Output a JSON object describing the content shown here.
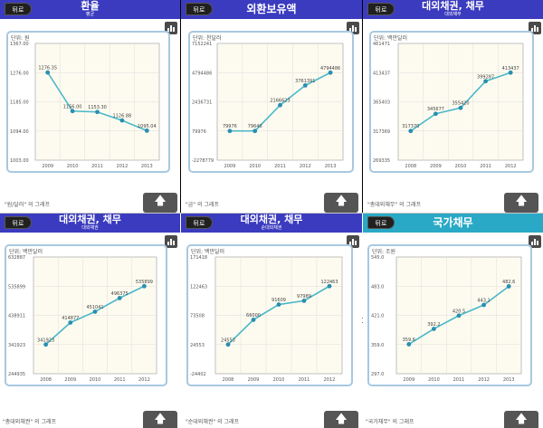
{
  "back_label": "뒤로",
  "up_icon": "up-arrow-icon",
  "chart_icon": "bar-chart-icon",
  "panels": [
    {
      "title": "환율",
      "subtitle": "평균",
      "footer": "\"원/달러\" 의 그래프",
      "chart_data": {
        "type": "line",
        "unit": "단위: 원",
        "x": [
          "2009",
          "2010",
          "2011",
          "2012",
          "2013"
        ],
        "values": [
          1276.35,
          1156.0,
          1153.3,
          1126.88,
          1095.04
        ],
        "labels": [
          "1276.35",
          "1156.00",
          "1153.30",
          "1126.88",
          "1095.04"
        ],
        "ylim": [
          1003.0,
          1367.0
        ],
        "yticks": [
          "1367.00",
          "1276.00",
          "1185.00",
          "1094.00",
          "1003.00"
        ]
      }
    },
    {
      "title": "외환보유액",
      "subtitle": "",
      "footer": "\"금\" 의 그래프",
      "chart_data": {
        "type": "line",
        "unit": "단위: 천달러",
        "x": [
          "2009",
          "2010",
          "2011",
          "2012",
          "2013"
        ],
        "values": [
          79976,
          79646,
          2166623,
          3761391,
          4794486
        ],
        "labels": [
          "79976",
          "79646",
          "2166623",
          "3761391",
          "4794486"
        ],
        "ylim": [
          -2278779,
          7152241
        ],
        "yticks": [
          "7152241",
          "4794486",
          "2436731",
          "79976",
          "-2278779"
        ]
      }
    },
    {
      "title": "대외채권, 채무",
      "subtitle": "대외채무",
      "footer": "\"총대외채무\" 의 그래프",
      "chart_data": {
        "type": "line",
        "unit": "단위: 백만달러",
        "x": [
          "2008",
          "2009",
          "2010",
          "2011",
          "2012"
        ],
        "values": [
          317370,
          345677,
          355420,
          399287,
          413437
        ],
        "labels": [
          "317370",
          "345677",
          "355420",
          "399287",
          "413437"
        ],
        "ylim": [
          269335,
          461471
        ],
        "yticks": [
          "461471",
          "413437",
          "365403",
          "317369",
          "269335"
        ]
      }
    },
    {
      "title": "대외채권, 채무",
      "subtitle": "대외채권",
      "footer": "\"총대외채권\" 의 그래프",
      "chart_data": {
        "type": "line",
        "unit": "단위: 백만달러",
        "x": [
          "2008",
          "2009",
          "2010",
          "2011",
          "2012"
        ],
        "values": [
          341923,
          414877,
          451041,
          496375,
          535899
        ],
        "labels": [
          "341923",
          "414877",
          "451041",
          "496375",
          "535899"
        ],
        "ylim": [
          244935,
          632887
        ],
        "yticks": [
          "632887",
          "535899",
          "438911",
          "341923",
          "244935"
        ]
      }
    },
    {
      "title": "대외채권, 채무",
      "subtitle": "순대외채권",
      "footer": "\"순대외채권\" 의 그래프",
      "chart_data": {
        "type": "line",
        "unit": "단위: 백만달러",
        "x": [
          "2008",
          "2009",
          "2010",
          "2011",
          "2012"
        ],
        "values": [
          24553,
          66000,
          91609,
          97989,
          122463
        ],
        "labels": [
          "24553",
          "66000",
          "91609",
          "97989",
          "122463"
        ],
        "ylim": [
          -24402,
          171418
        ],
        "yticks": [
          "171418",
          "122463",
          "73508",
          "24553",
          "-24402"
        ]
      }
    },
    {
      "title": "국가채무",
      "subtitle": "",
      "footer": "\"국가채무\" 의 그래프",
      "chart_data": {
        "type": "line",
        "unit": "단위: 조원",
        "x": [
          "2009",
          "2010",
          "2011",
          "2012",
          "2013"
        ],
        "values": [
          359.6,
          392.2,
          420.5,
          443.1,
          482.6
        ],
        "labels": [
          "359.6",
          "392.2",
          "420.5",
          "443.1",
          "482.6"
        ],
        "ylim": [
          297.0,
          545.0
        ],
        "yticks": [
          "545.0",
          "483.0",
          "421.0",
          "359.0",
          "297.0"
        ]
      }
    }
  ]
}
